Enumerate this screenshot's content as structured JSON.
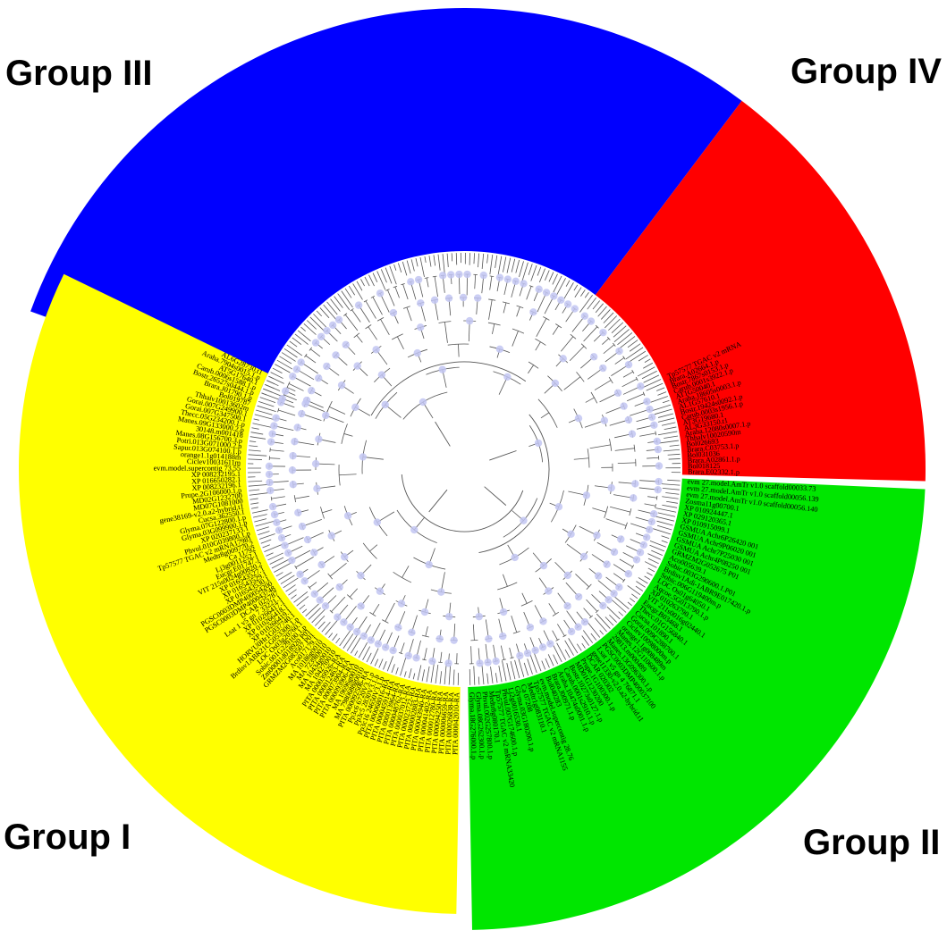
{
  "group_labels": {
    "group_iii": "Group III",
    "group_iv": "Group IV",
    "group_i": "Group I",
    "group_ii": "Group II"
  },
  "colors": {
    "group_iii": "#0000ff",
    "group_iv": "#ff0000",
    "group_i": "#ffff00",
    "group_ii": "#00e600",
    "branch": "#555555",
    "node_dot": "#c2c6f2",
    "leaf_text": "#000000"
  },
  "leaves": {
    "group_i": [
      "AL6G28730.t1",
      "Araha.7904s0015.1.p",
      "AT5G17640.1",
      "Carub.0006s1588.1.p",
      "Bostr.26527s0444.1.p",
      "Brara.J01790.1.p",
      "Bol019787",
      "Thhalv10013602m",
      "Gorai.007G249900.1",
      "Gorai.007G347500.1",
      "Thecc.05G234200.1.p",
      "Manes.09G133000.2.p",
      "30148.m001418",
      "Manes.08G156700.3.p",
      "Potri.013G071000.2.p",
      "Sapur.013G074100.1.p",
      "orange1.1g014188m",
      "Ciclev10031611m",
      "evm.model.supercontig 73.55",
      "XP 008232195.1",
      "XP 016650282.1",
      "XP 008232196.1",
      "Prupe.2G106000.1.p",
      "MD02G1232700",
      "MD07G1081000",
      "gene38169-v2.0.a2-hybrid.t1",
      "Cucsa.362550.1",
      "Glyma.07G122800.1.p",
      "Glyma.03G099900.1.p",
      "XP 020237133.1",
      "Phvul.010G039800.1.p",
      "Tp57577 TGAC v2 mRNA17981",
      "Medtr8g009770.2",
      "Ca 11792",
      "Lj3g0011252.1",
      "Eucgr.E01747.1",
      "VIT 215s0024g00820.2",
      "XP 016543527.1",
      "XP 016543529.1",
      "XP 016543530.1",
      "PGSC0003DMP400054200",
      "PGSC0003DMP400043748",
      "DCAR 025787",
      "Lsat 1 v5 gn 7 33221.1",
      "XP 010266417.1",
      "XP 010266418.1",
      "XP 010266419.1",
      "HORVU0Hr1G037740.1",
      "Brdisv1ABR21CG053300.1.p",
      "LOC Os03g20760.1",
      "Sobic.001G229100.1.p",
      "Zm00001d018920 P01",
      "GRMZM2G083507 P01",
      "Aco017179.1",
      "MA 10186g0010",
      "MA 7239t0010",
      "MA 10434g0010",
      "MA 10427t0010",
      "PITA 000039926-RA",
      "PITA 000012463-RA",
      "PITA 000073904-RA",
      "PITA 000093906-RA",
      "MA 19696g0010",
      "MA 7980688g0010",
      "PITA 000092506-RA",
      "Pp3c6 6720V3.1.p",
      "Pp3c5 2830V3.1.p",
      "Pp3c16 24650V3.1.p",
      "PITA 000068016-RA",
      "PITA 000045914-RA",
      "PITA 000013964-RA",
      "PITA 000048762-RA",
      "PITA 000037012-RA",
      "PITA 000023722-RA",
      "PITA 000002883-RA",
      "PITA 000043940-RA",
      "PITA 000041402-RA",
      "PITA 000012780-RA",
      "PITA 000094250-RA",
      "PITA 000006659-RA",
      "PITA 000026838-RA",
      "PITA 000042010-RA"
    ],
    "group_iv": [
      "Tp57577 TGAC v2 mRNA",
      "Brara.A02664.1.p",
      "Bostr.7867s0153.1.p",
      "Carub.0001s3922.1.p",
      "AT1G50040.1",
      "Araha.18605s0003.1.p",
      "AL1G57610.1",
      "Bostr.19424s0092.1.p",
      "Carub.0003s1956.1.p",
      "AT3G19680.1",
      "AL3G33150.t1",
      "Araha.12080s0007.1.p",
      "Thhalv10020590m",
      "Bol026693",
      "Brara.C03753.1.p",
      "Bol031036",
      "Brara.A02861.1.p",
      "Bol018125",
      "Brara.E02332.1.p"
    ],
    "group_ii": [
      "evm 27.model.AmTr v1.0 scaffold00033.73",
      "evm 27.model.AmTr v1.0 scaffold00056.139",
      "evm 27.model.AmTr v1.0 scaffold00056.140",
      "Zosma11g00700.1",
      "XP 010924447.1",
      "XP 029120365.1",
      "XP 010915099.1",
      "GSMUA Achr6P26420 001",
      "GSMUA Achr9P06020 001",
      "GSMUA Achr7P25030 001",
      "GSMUA Achr4P08250 001",
      "GRMZM2G052675 P01",
      "Aco005639.1",
      "Sobic.003G290600.1.P01",
      "Brdisv1Adi-1ABR9E017420.1.p",
      "Sobic.006G119400m.p",
      "LOC Os01g64050.1",
      "Aqcoe.5G013790.1.p",
      "XP 010263790.1",
      "VIT 211s0016g02440.1",
      "Eucgr.B03468.1",
      "Thecc.01G156840.1",
      "Cucsa.101890.1",
      "Gorai.009G288700.1",
      "Ciclev10098000m.p",
      "orange1.1g008489m",
      "Manes.12G110600.1.p",
      "29813.m000489",
      "Manes.13G096300.1.p",
      "PGSC0003DMP400037100",
      "Lsat 1 v5 gn 4 76871.1",
      "gene11330-v2.0.a2-hybrid.t1",
      "DCAR 020302",
      "Prupe.1G100300.1.p",
      "MD01G1230200",
      "Bostr.10273s0127.1.p",
      "Carub.0001s2910.1.p",
      "Araha.10474s0001.1.p",
      "Brara.J00971.1.p",
      "Bol040283",
      "evm.model.supercontig 28.76",
      "Tp57577 TGAC v2 mRNA1155",
      "Medtr1g083110.1",
      "Ca 07208",
      "Glyma.03G180200.1.p",
      "Lj2g0016530.1",
      "Phvul.007G174600.1.p",
      "Tp57577 TGAC v2 mRNA33420",
      "Medtr8g080170.1",
      "Phvul.002G257800.1.p",
      "Glyma.08G262300.1.p",
      "Glyma.18G276000.1.p"
    ]
  }
}
